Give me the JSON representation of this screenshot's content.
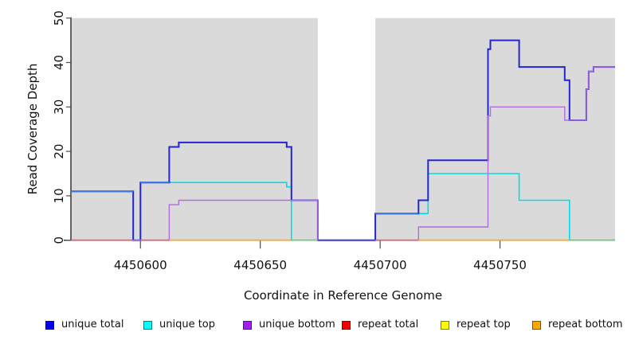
{
  "axes": {
    "x_title": "Coordinate in Reference Genome",
    "y_title": "Read Coverage Depth"
  },
  "chart_data": {
    "type": "line",
    "subtype": "step",
    "title": "",
    "xlabel": "Coordinate in Reference Genome",
    "ylabel": "Read Coverage Depth",
    "xlim": [
      4450571,
      4450798
    ],
    "ylim": [
      0,
      50
    ],
    "grid": false,
    "legend_position": "bottom",
    "x_ticks": [
      4450600,
      4450650,
      4450700,
      4450750
    ],
    "x_tick_labels": [
      "4450600",
      "4450650",
      "4450700",
      "4450750"
    ],
    "y_ticks": [
      0,
      10,
      20,
      30,
      40,
      50
    ],
    "y_tick_labels": [
      "0",
      "10",
      "20",
      "30",
      "40",
      "50"
    ],
    "background_regions": [
      {
        "x1": 4450571,
        "x2": 4450674,
        "color": "#DADADA"
      },
      {
        "x1": 4450698,
        "x2": 4450798,
        "color": "#DADADA"
      }
    ],
    "x_end": 4450798,
    "series": [
      {
        "name": "unique total",
        "legend_color": "#0000F5",
        "line_color": "#2525CF",
        "width": 2,
        "points": [
          [
            4450571,
            11
          ],
          [
            4450597,
            0
          ],
          [
            4450600,
            13
          ],
          [
            4450612,
            21
          ],
          [
            4450616,
            22
          ],
          [
            4450661,
            21
          ],
          [
            4450663,
            9
          ],
          [
            4450674,
            0
          ],
          [
            4450698,
            6
          ],
          [
            4450716,
            9
          ],
          [
            4450720,
            18
          ],
          [
            4450745,
            43
          ],
          [
            4450746,
            45
          ],
          [
            4450758,
            39
          ],
          [
            4450777,
            36
          ],
          [
            4450779,
            27
          ],
          [
            4450786,
            34
          ],
          [
            4450787,
            38
          ],
          [
            4450789,
            39
          ]
        ]
      },
      {
        "name": "unique top",
        "legend_color": "#00FFFF",
        "line_color": "#00DDE6",
        "width": 1.6,
        "points": [
          [
            4450571,
            11
          ],
          [
            4450597,
            0
          ],
          [
            4450600,
            13
          ],
          [
            4450661,
            12
          ],
          [
            4450663,
            0
          ],
          [
            4450698,
            6
          ],
          [
            4450720,
            15
          ],
          [
            4450758,
            9
          ],
          [
            4450779,
            0
          ]
        ]
      },
      {
        "name": "unique bottom",
        "legend_color": "#A020F0",
        "line_color": "#B26BE0",
        "width": 1.4,
        "points": [
          [
            4450571,
            0
          ],
          [
            4450612,
            8
          ],
          [
            4450616,
            9
          ],
          [
            4450674,
            0
          ],
          [
            4450716,
            3
          ],
          [
            4450745,
            28
          ],
          [
            4450746,
            30
          ],
          [
            4450777,
            27
          ],
          [
            4450786,
            34
          ],
          [
            4450787,
            38
          ],
          [
            4450789,
            39
          ]
        ]
      },
      {
        "name": "repeat total",
        "legend_color": "#F00000",
        "line_color": "#E03030",
        "width": 1.4,
        "points": [
          [
            4450571,
            0
          ]
        ]
      },
      {
        "name": "repeat top",
        "legend_color": "#FFFF00",
        "line_color": "#FFE800",
        "width": 1.4,
        "points": [
          [
            4450571,
            0
          ]
        ]
      },
      {
        "name": "repeat bottom",
        "legend_color": "#FFA500",
        "line_color": "#FFA320",
        "width": 1.6,
        "points": [
          [
            4450571,
            0
          ]
        ]
      }
    ],
    "overlap_segments": [
      {
        "y": 11,
        "x1": 4450571,
        "x2": 4450597,
        "color": "#3E78E0",
        "width": 2
      },
      {
        "y": 13,
        "x1": 4450600,
        "x2": 4450612,
        "color": "#3E78E0",
        "width": 2
      },
      {
        "y": 6,
        "x1": 4450698,
        "x2": 4450716,
        "color": "#3E78E0",
        "width": 2
      }
    ],
    "baseline_segments": [
      {
        "x1": 4450571,
        "x2": 4450597,
        "color": "#DC5878"
      },
      {
        "x1": 4450600,
        "x2": 4450612,
        "color": "#DC5878"
      },
      {
        "x1": 4450612,
        "x2": 4450663,
        "color": "#FFA320"
      },
      {
        "x1": 4450663,
        "x2": 4450674,
        "color": "#76C77E"
      },
      {
        "x1": 4450674,
        "x2": 4450698,
        "color": "#4F3AD8"
      },
      {
        "x1": 4450698,
        "x2": 4450716,
        "color": "#DC5878"
      },
      {
        "x1": 4450716,
        "x2": 4450779,
        "color": "#FFA320"
      },
      {
        "x1": 4450779,
        "x2": 4450798,
        "color": "#76C77E"
      }
    ],
    "legend_item_x": [
      57,
      180,
      305,
      429,
      553,
      668
    ]
  },
  "style": {
    "panel_color": "#DADADA",
    "axis_color": "#1A1A1A",
    "tick_color": "#4D4D4D",
    "text_color": "#111111"
  }
}
